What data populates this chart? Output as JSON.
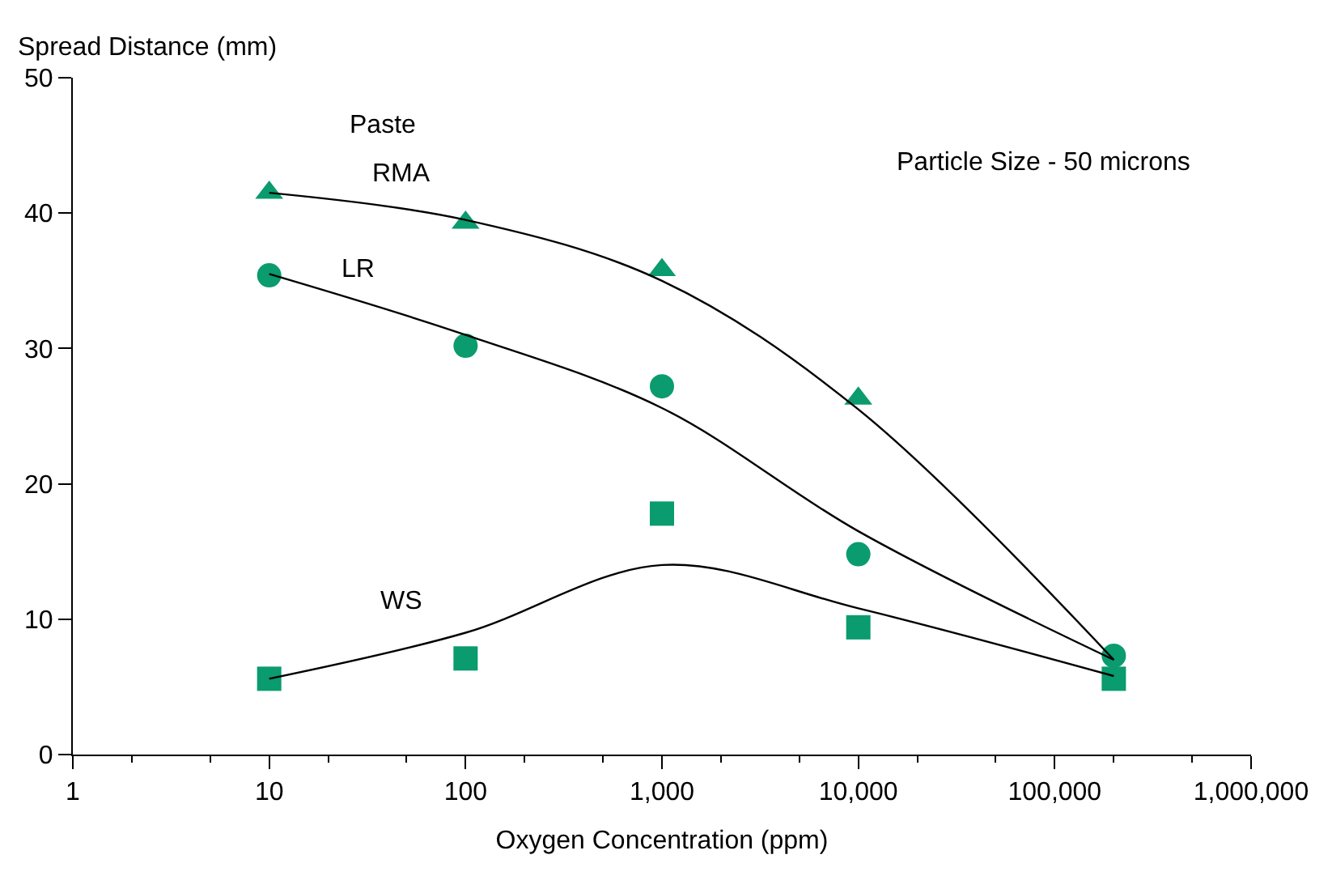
{
  "chart_data": {
    "type": "scatter",
    "xlabel": "Oxygen Concentration (ppm)",
    "ylabel": "Spread Distance (mm)",
    "log": "x",
    "legend": false,
    "xlim": [
      1,
      1000000
    ],
    "ylim": [
      0,
      50
    ],
    "xticks": [
      1,
      10,
      100,
      {
        "value": 1000,
        "label": "1,000"
      },
      {
        "value": 10000,
        "label": "10,000"
      },
      {
        "value": 100000,
        "label": "100,000"
      },
      {
        "value": 1000000,
        "label": "1,000,000"
      }
    ],
    "yticks": [
      0,
      10,
      20,
      30,
      40,
      50
    ],
    "series": [
      {
        "name": "RMA",
        "marker": "triangle",
        "color": "#0a9b6e",
        "x": [
          10,
          100,
          1000,
          10000
        ],
        "values": [
          41.5,
          39.3,
          35.8,
          26.3
        ]
      },
      {
        "name": "LR",
        "marker": "circle",
        "color": "#0a9b6e",
        "x": [
          10,
          100,
          1000,
          10000,
          200000
        ],
        "values": [
          35.4,
          30.2,
          27.2,
          14.8,
          7.3
        ]
      },
      {
        "name": "WS",
        "marker": "square",
        "color": "#0a9b6e",
        "x": [
          10,
          100,
          1000,
          10000,
          200000
        ],
        "values": [
          5.6,
          7.1,
          17.8,
          9.4,
          5.6
        ]
      },
      {
        "type": "line",
        "color": "#000000",
        "x": [
          10,
          100,
          1000,
          10000,
          200000
        ],
        "values": [
          41.5,
          39.5,
          35,
          25.5,
          7
        ]
      },
      {
        "type": "line",
        "color": "#000000",
        "x": [
          10,
          100,
          1000,
          10000,
          200000
        ],
        "values": [
          35.5,
          31,
          25.6,
          16.5,
          7
        ]
      },
      {
        "type": "line",
        "color": "#000000",
        "x": [
          10,
          100,
          1000,
          10000,
          200000
        ],
        "values": [
          5.6,
          9,
          14,
          10.8,
          5.8
        ]
      }
    ],
    "annotations": [
      "Paste",
      "Particle Size - 50 microns"
    ]
  }
}
